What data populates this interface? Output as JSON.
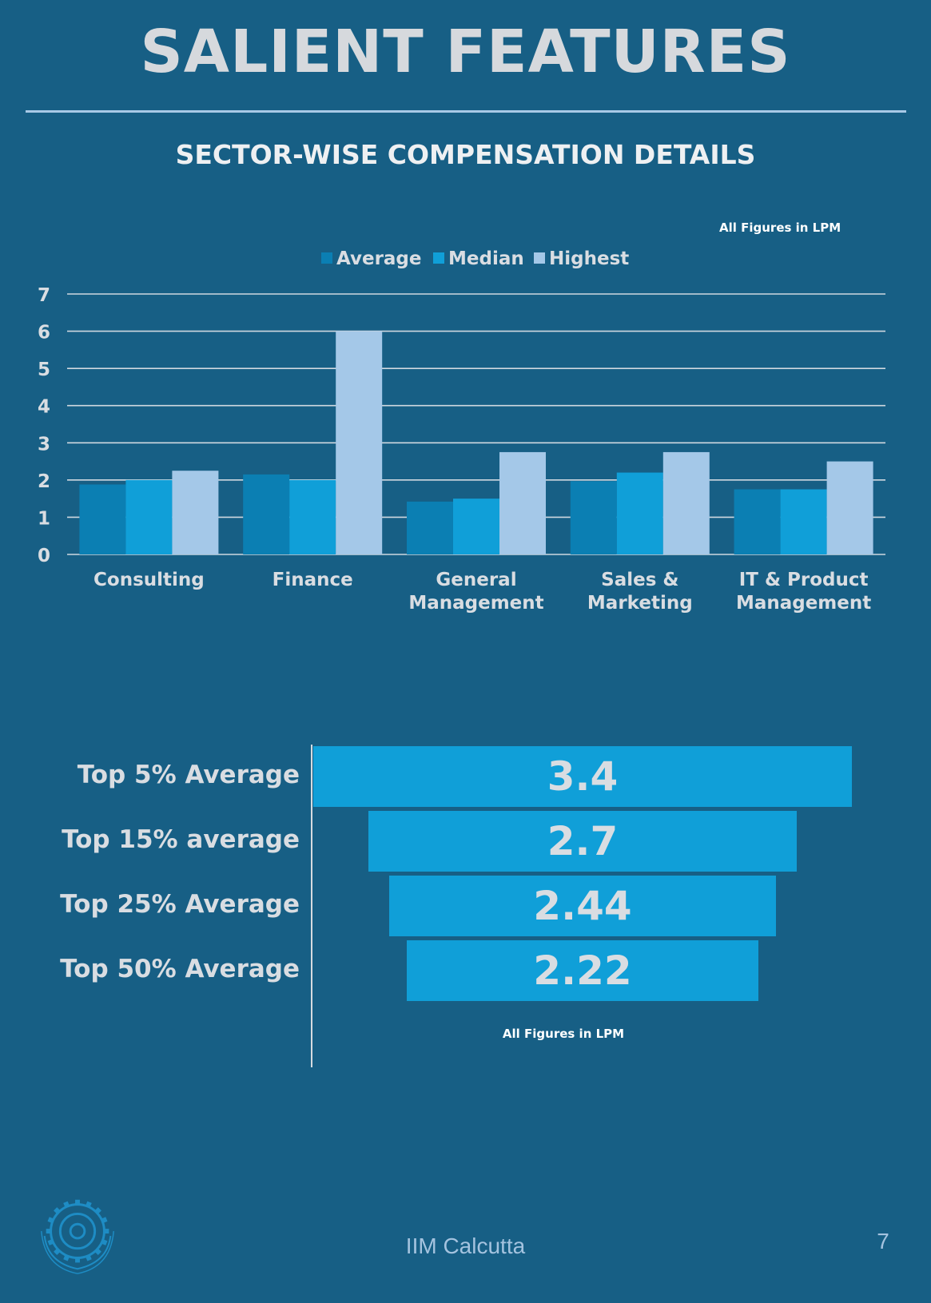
{
  "page": {
    "title": "SALIENT FEATURES",
    "section_title": "SECTOR-WISE COMPENSATION DETAILS",
    "footer_text": "IIM Calcutta",
    "page_number": "7"
  },
  "colors": {
    "background": "#175f85",
    "average": "#0b7fb3",
    "median": "#109fd8",
    "highest": "#a4c8e8",
    "gridline": "#cfd8e0"
  },
  "chart_data": [
    {
      "type": "bar",
      "note": "All Figures in LPM",
      "categories": [
        "Consulting",
        "Finance",
        "General Management",
        "Sales & Marketing",
        "IT & Product Management"
      ],
      "category_lines": [
        [
          "Consulting"
        ],
        [
          "Finance"
        ],
        [
          "General",
          "Management"
        ],
        [
          "Sales &",
          "Marketing"
        ],
        [
          "IT & Product",
          "Management"
        ]
      ],
      "series": [
        {
          "name": "Average",
          "values": [
            1.88,
            2.15,
            1.42,
            1.97,
            1.75
          ]
        },
        {
          "name": "Median",
          "values": [
            2.0,
            2.0,
            1.5,
            2.2,
            1.75
          ]
        },
        {
          "name": "Highest",
          "values": [
            2.25,
            6.0,
            2.75,
            2.75,
            2.5
          ]
        }
      ],
      "ylim": [
        0,
        7
      ],
      "yticks": [
        0,
        1,
        2,
        3,
        4,
        5,
        6,
        7
      ],
      "grid": true,
      "legend_position": "top"
    },
    {
      "type": "bar",
      "orientation": "horizontal-funnel",
      "note": "All Figures in LPM",
      "categories": [
        "Top 5% Average",
        "Top 15% average",
        "Top 25% Average",
        "Top 50% Average"
      ],
      "values": [
        3.4,
        2.7,
        2.44,
        2.22
      ],
      "value_labels": [
        "3.4",
        "2.7",
        "2.44",
        "2.22"
      ]
    }
  ],
  "logo": {
    "text_top": "INDIAN INSTITUTE OF MANAGEMENT",
    "text_bottom": "CALCUTTA"
  }
}
